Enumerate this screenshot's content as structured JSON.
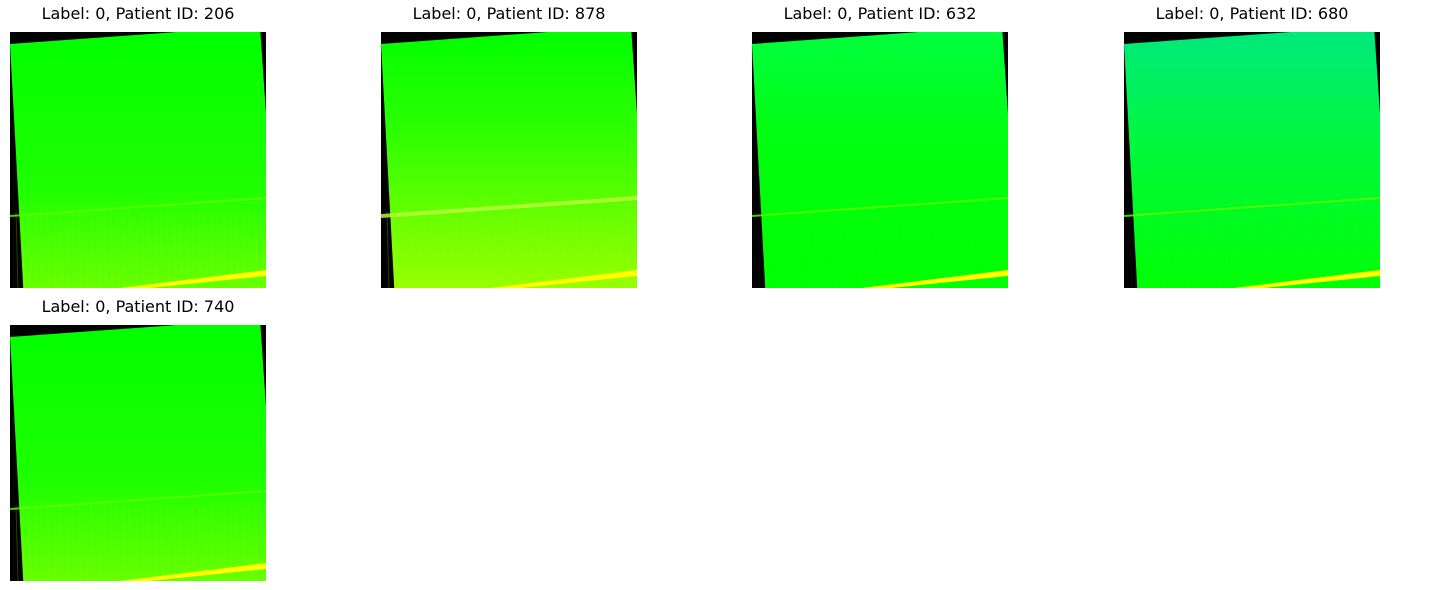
{
  "figure": {
    "panels": [
      {
        "title": "Label: 0, Patient ID: 206",
        "variant": "yellow-lower"
      },
      {
        "title": "Label: 0, Patient ID: 878",
        "variant": "strong-yellow"
      },
      {
        "title": "Label: 0, Patient ID: 632",
        "variant": "cyan-top"
      },
      {
        "title": "Label: 0, Patient ID: 680",
        "variant": "teal-top"
      },
      {
        "title": "Label: 0, Patient ID: 740",
        "variant": "yellow-lower"
      }
    ]
  },
  "colors": {
    "background": "#ffffff",
    "border": "#000000",
    "green": "#00ff00",
    "yellow_green": "#80ff00",
    "yellow": "#ffff00",
    "teal": "#00e080"
  }
}
